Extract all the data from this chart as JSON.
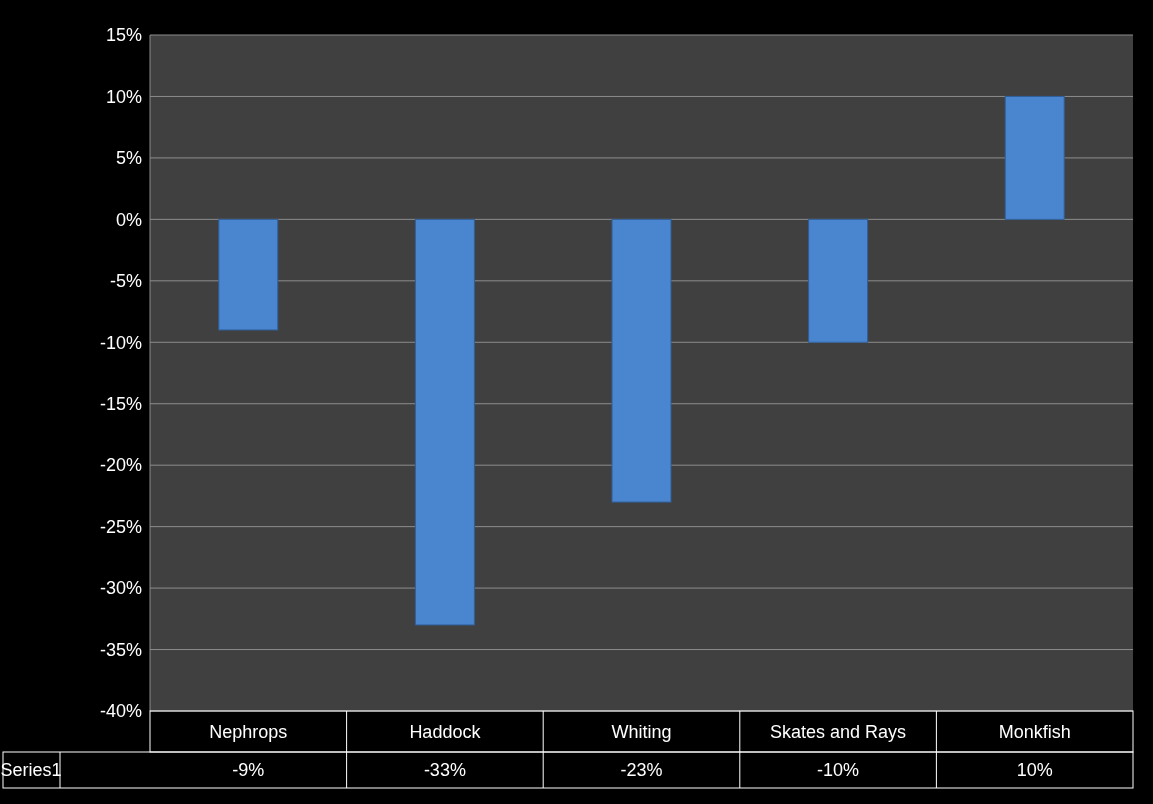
{
  "chart_data": {
    "type": "bar",
    "categories": [
      "Nephrops",
      "Haddock",
      "Whiting",
      "Skates and Rays",
      "Monkfish"
    ],
    "series": [
      {
        "name": "Series1",
        "color": "#4a86d0",
        "values": [
          -9,
          -33,
          -23,
          -10,
          10
        ],
        "value_labels": [
          "-9%",
          "-33%",
          "-23%",
          "-10%",
          "10%"
        ]
      }
    ],
    "ylim": [
      -40,
      15
    ],
    "yticks": [
      {
        "value": -40,
        "label": "-40%"
      },
      {
        "value": -35,
        "label": "-35%"
      },
      {
        "value": -30,
        "label": "-30%"
      },
      {
        "value": -25,
        "label": "-25%"
      },
      {
        "value": -20,
        "label": "-20%"
      },
      {
        "value": -15,
        "label": "-15%"
      },
      {
        "value": -10,
        "label": "-10%"
      },
      {
        "value": -5,
        "label": "-5%"
      },
      {
        "value": 0,
        "label": "0%"
      },
      {
        "value": 5,
        "label": "5%"
      },
      {
        "value": 10,
        "label": "10%"
      },
      {
        "value": 15,
        "label": "15%"
      }
    ],
    "grid": "y"
  }
}
